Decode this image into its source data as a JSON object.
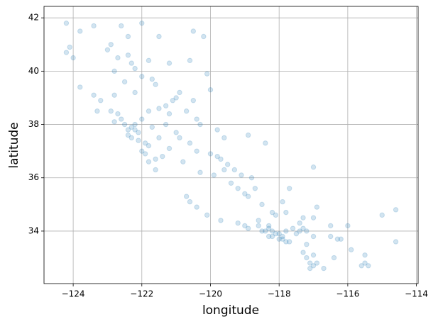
{
  "chart_data": {
    "type": "scatter",
    "xlabel": "longitude",
    "ylabel": "latitude",
    "color": "#1f77b4",
    "alpha": 0.2,
    "grid": true,
    "xlim": [
      -124.85,
      -113.95
    ],
    "ylim": [
      32.03,
      42.43
    ],
    "xticks": [
      {
        "value": -124,
        "label": "−124"
      },
      {
        "value": -122,
        "label": "−122"
      },
      {
        "value": -120,
        "label": "−120"
      },
      {
        "value": -118,
        "label": "−118"
      },
      {
        "value": -116,
        "label": "−116"
      },
      {
        "value": -114,
        "label": "−114"
      }
    ],
    "yticks": [
      34,
      36,
      38,
      40,
      42
    ],
    "x": [
      -124.2,
      -124.1,
      -124.2,
      -124.0,
      -123.8,
      -123.4,
      -122.6,
      -122.4,
      -122.4,
      -122.3,
      -122.2,
      -122.0,
      -121.7,
      -121.6,
      -121.8,
      -121.2,
      -120.6,
      -123.8,
      -123.4,
      -123.2,
      -122.9,
      -122.7,
      -122.6,
      -122.5,
      -122.4,
      -122.3,
      -122.2,
      -122.1,
      -122.4,
      -122.3,
      -122.1,
      -121.9,
      -121.8,
      -122.0,
      -121.8,
      -121.6,
      -121.4,
      -121.6,
      -122.2,
      -122.0,
      -121.8,
      -121.5,
      -121.3,
      -121.2,
      -121.3,
      -121.0,
      -120.9,
      -120.6,
      -120.4,
      -120.0,
      -119.8,
      -119.7,
      -119.5,
      -119.3,
      -119.1,
      -119.0,
      -118.9,
      -119.2,
      -120.7,
      -120.6,
      -120.4,
      -120.1,
      -119.7,
      -119.2,
      -119.0,
      -118.6,
      -118.5,
      -118.4,
      -118.3,
      -118.2,
      -118.1,
      -118.0,
      -118.3,
      -118.2,
      -118.0,
      -117.9,
      -117.8,
      -117.7,
      -117.8,
      -117.6,
      -117.4,
      -117.3,
      -117.2,
      -117.0,
      -117.2,
      -117.3,
      -117.2,
      -117.1,
      -117.0,
      -117.1,
      -116.9,
      -117.0,
      -116.5,
      -116.3,
      -116.2,
      -115.9,
      -115.5,
      -115.6,
      -115.4,
      -114.6,
      -114.6,
      -115.0,
      -116.9,
      -117.3,
      -117.0,
      -116.5,
      -117.8,
      -118.1,
      -118.2,
      -118.5,
      -118.7,
      -117.7,
      -117.9,
      -117.0,
      -118.4,
      -118.9,
      -119.6,
      -119.8,
      -120.3,
      -120.4,
      -120.7,
      -120.5,
      -120.0,
      -120.1,
      -120.9,
      -121.0,
      -121.1,
      -122.8,
      -122.5,
      -122.2,
      -122.8,
      -123.0,
      -122.7,
      -121.5,
      -120.5,
      -120.2,
      -122.0,
      -123.3,
      -122.8,
      -121.7,
      -121.5,
      -121.2,
      -120.8,
      -120.3,
      -119.9,
      -119.6,
      -119.4,
      -118.8,
      -118.6,
      -118.9,
      -117.5,
      -117.9,
      -116.0,
      -115.5,
      -116.7,
      -116.4,
      -117.4,
      -118.3,
      -122.9,
      -121.9
    ],
    "values": [
      41.8,
      40.9,
      40.7,
      40.5,
      41.5,
      41.7,
      41.7,
      41.3,
      40.6,
      40.3,
      40.1,
      39.8,
      39.7,
      39.5,
      40.4,
      40.3,
      40.4,
      39.4,
      39.1,
      38.9,
      38.5,
      38.4,
      38.2,
      38.0,
      37.8,
      37.9,
      37.8,
      37.7,
      37.6,
      37.5,
      37.4,
      37.3,
      37.2,
      37.0,
      36.6,
      36.7,
      36.8,
      36.3,
      38.0,
      38.2,
      38.5,
      38.6,
      38.7,
      38.4,
      38.0,
      37.7,
      37.5,
      37.3,
      37.0,
      36.9,
      36.8,
      36.7,
      36.5,
      36.3,
      36.1,
      35.4,
      35.3,
      35.6,
      35.3,
      35.1,
      34.9,
      34.6,
      34.4,
      34.3,
      34.2,
      34.2,
      34.0,
      34.0,
      34.1,
      34.0,
      33.9,
      33.9,
      33.8,
      33.8,
      33.7,
      33.7,
      33.6,
      33.6,
      34.0,
      34.1,
      34.0,
      34.1,
      34.0,
      33.8,
      33.5,
      33.2,
      33.0,
      32.8,
      32.7,
      32.6,
      32.8,
      33.1,
      33.8,
      33.7,
      33.7,
      33.3,
      32.8,
      32.7,
      32.7,
      33.6,
      34.8,
      34.6,
      34.9,
      34.5,
      34.5,
      34.2,
      34.7,
      34.6,
      34.7,
      35.0,
      35.6,
      35.6,
      35.1,
      36.4,
      37.3,
      37.6,
      37.5,
      37.8,
      38.0,
      38.2,
      38.5,
      38.9,
      39.3,
      39.9,
      39.2,
      39.0,
      38.9,
      39.1,
      39.6,
      39.2,
      40.0,
      40.8,
      40.5,
      41.3,
      41.5,
      41.3,
      41.8,
      38.5,
      38.1,
      37.9,
      37.5,
      37.1,
      36.6,
      36.2,
      36.1,
      36.3,
      35.8,
      36.0,
      34.4,
      34.1,
      33.9,
      33.8,
      34.2,
      33.1,
      32.6,
      33.0,
      34.3,
      34.2,
      41.0,
      36.9
    ]
  }
}
